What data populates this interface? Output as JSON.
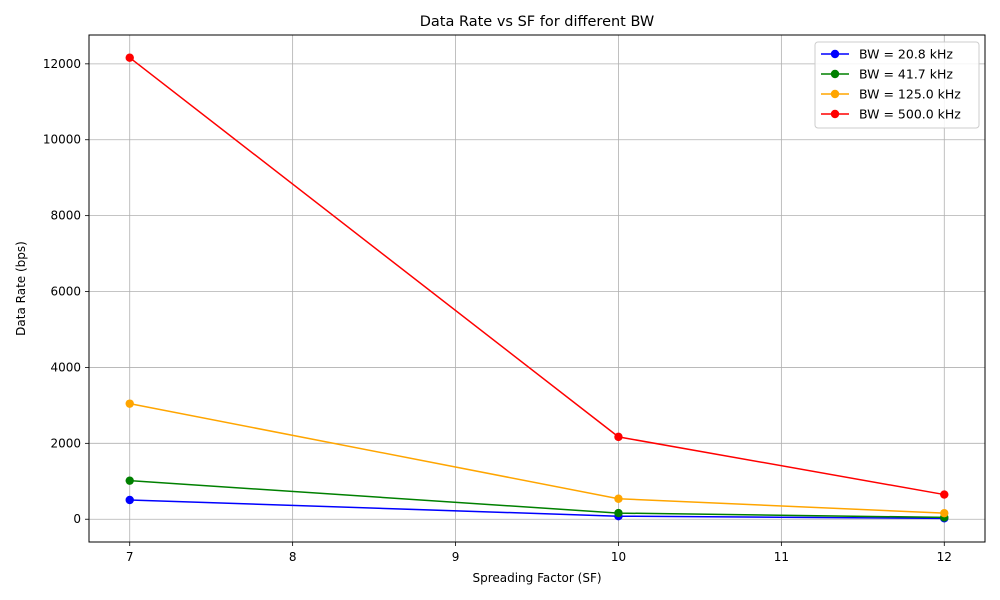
{
  "chart_data": {
    "type": "line",
    "title": "Data Rate vs SF for different BW",
    "xlabel": "Spreading Factor (SF)",
    "ylabel": "Data Rate (bps)",
    "x": [
      7,
      10,
      12
    ],
    "xlim": [
      6.75,
      12.25
    ],
    "ylim": [
      -600,
      12760
    ],
    "xticks": [
      7,
      8,
      9,
      10,
      11,
      12
    ],
    "yticks": [
      0,
      2000,
      4000,
      6000,
      8000,
      10000,
      12000
    ],
    "grid": true,
    "legend_position": "top-right",
    "series": [
      {
        "name": "BW = 20.8 kHz",
        "color": "#0000ff",
        "values": [
          507,
          80,
          24
        ]
      },
      {
        "name": "BW = 41.7 kHz",
        "color": "#008000",
        "values": [
          1016,
          162,
          48
        ]
      },
      {
        "name": "BW = 125.0 kHz",
        "color": "#ffa500",
        "values": [
          3046,
          540,
          160
        ]
      },
      {
        "name": "BW = 500.0 kHz",
        "color": "#ff0000",
        "values": [
          12162,
          2170,
          650
        ]
      }
    ]
  }
}
